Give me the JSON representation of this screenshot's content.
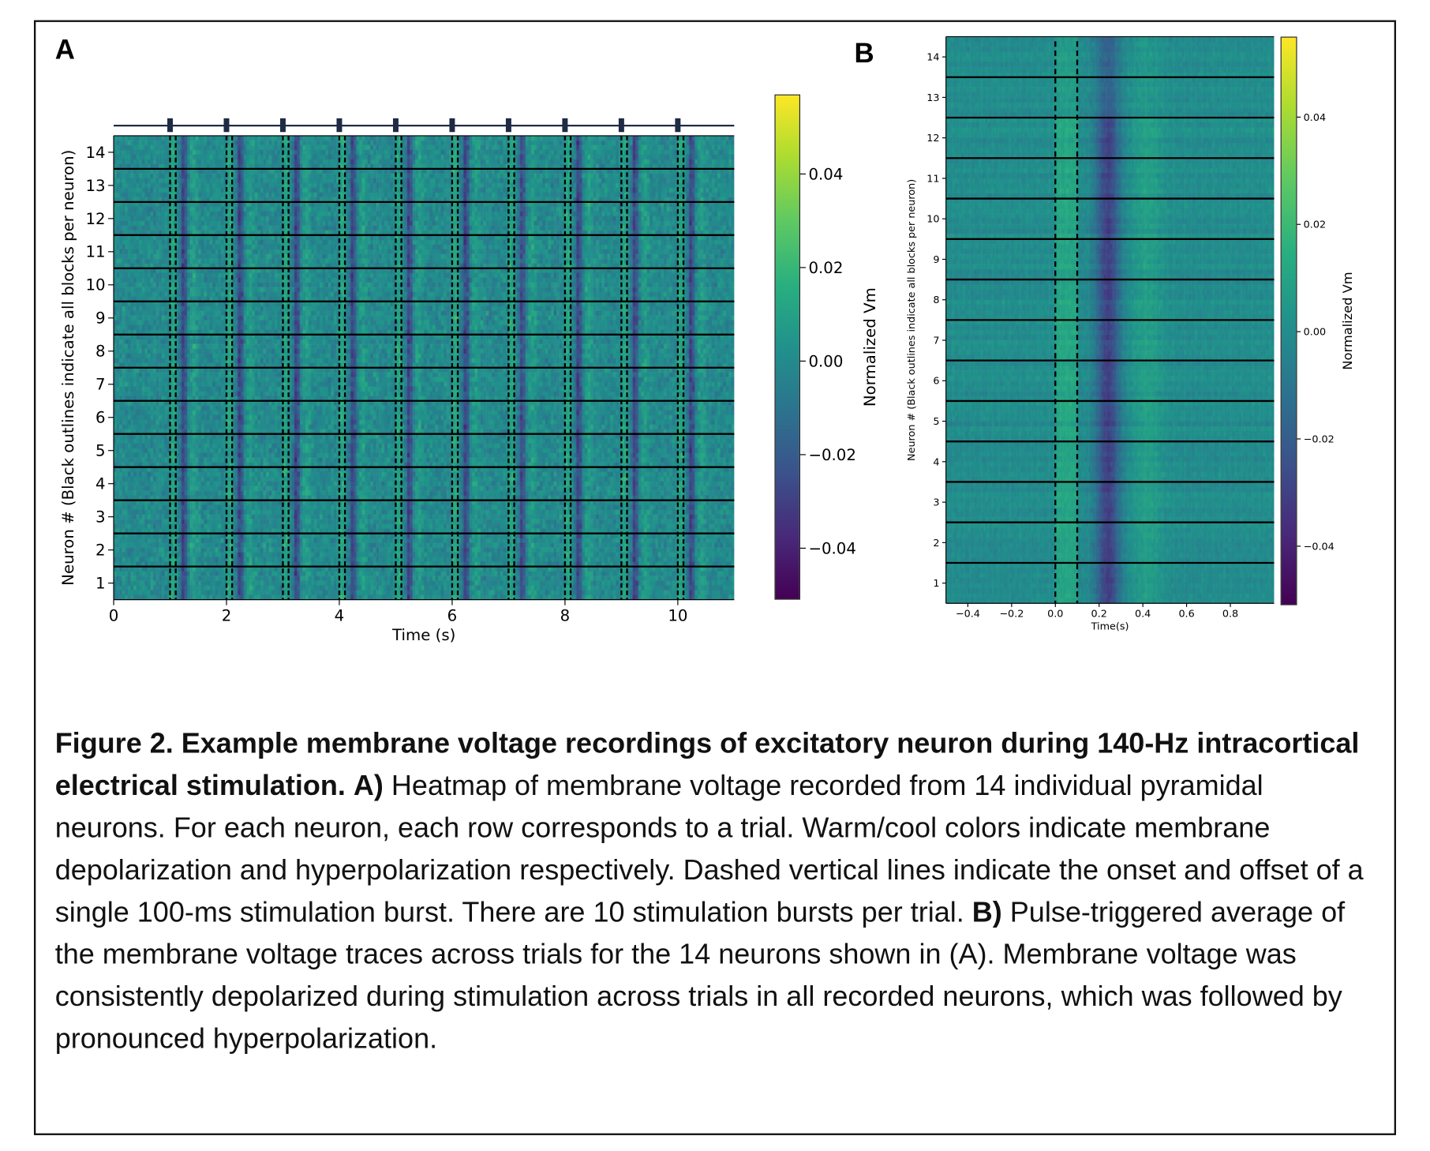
{
  "figure": {
    "panel_a_label": "A",
    "panel_b_label": "B"
  },
  "caption": {
    "title": "Figure 2. Example membrane voltage recordings of excitatory neuron during 140-Hz intracortical electrical stimulation.",
    "a_marker": "A)",
    "a_text": "Heatmap of membrane voltage recorded from 14 individual pyramidal neurons. For each neuron, each row corresponds to a trial. Warm/cool colors indicate membrane depolarization and hyperpolarization respectively. Dashed vertical lines indicate the onset and offset of a single 100-ms stimulation burst. There are 10 stimulation bursts per trial.",
    "b_marker": "B)",
    "b_text": "Pulse-triggered average of the membrane voltage traces across trials for the 14 neurons shown in (A). Membrane voltage was consistently depolarized during stimulation across trials in all recorded neurons, which was followed by pronounced hyperpolarization."
  },
  "chart_data": [
    {
      "panel": "A",
      "type": "heatmap",
      "title": "",
      "xlabel": "Time (s)",
      "ylabel": "Neuron # (Black outlines indicate all blocks per neuron)",
      "xlim": [
        0,
        11
      ],
      "ylim": [
        0.5,
        14.5
      ],
      "xticks": [
        "0",
        "2",
        "4",
        "6",
        "8",
        "10"
      ],
      "yticks": [
        "1",
        "2",
        "3",
        "4",
        "5",
        "6",
        "7",
        "8",
        "9",
        "10",
        "11",
        "12",
        "13",
        "14"
      ],
      "stimulus_onsets_s": [
        1,
        2,
        3,
        4,
        5,
        6,
        7,
        8,
        9,
        10
      ],
      "burst_duration_s": 0.1,
      "colormap": "viridis",
      "colorbar": {
        "label": "Normalized Vm",
        "range": [
          -0.051,
          0.057
        ],
        "ticks": [
          "0.04",
          "0.02",
          "0.00",
          "−0.02",
          "−0.04"
        ],
        "tick_values": [
          0.04,
          0.02,
          0.0,
          -0.02,
          -0.04
        ]
      }
    },
    {
      "panel": "B",
      "type": "heatmap",
      "title": "",
      "xlabel": "Time(s)",
      "ylabel": "Neuron # (Black outlines indicate all blocks per neuron)",
      "xlim": [
        -0.5,
        1.0
      ],
      "ylim": [
        0.5,
        14.5
      ],
      "xticks": [
        "−0.4",
        "−0.2",
        "0.0",
        "0.2",
        "0.4",
        "0.6",
        "0.8"
      ],
      "xtick_values": [
        -0.4,
        -0.2,
        0.0,
        0.2,
        0.4,
        0.6,
        0.8
      ],
      "yticks": [
        "1",
        "2",
        "3",
        "4",
        "5",
        "6",
        "7",
        "8",
        "9",
        "10",
        "11",
        "12",
        "13",
        "14"
      ],
      "stimulus_window_s": [
        0.0,
        0.1
      ],
      "colormap": "viridis",
      "colorbar": {
        "label": "Normalized Vm",
        "range": [
          -0.051,
          0.055
        ],
        "ticks": [
          "0.04",
          "0.02",
          "0.00",
          "−0.02",
          "−0.04"
        ],
        "tick_values": [
          0.04,
          0.02,
          0.0,
          -0.02,
          -0.04
        ]
      }
    }
  ],
  "colors": {
    "frame": "#111111",
    "stim_marker": "#1f2a44",
    "divider": "#000000"
  }
}
